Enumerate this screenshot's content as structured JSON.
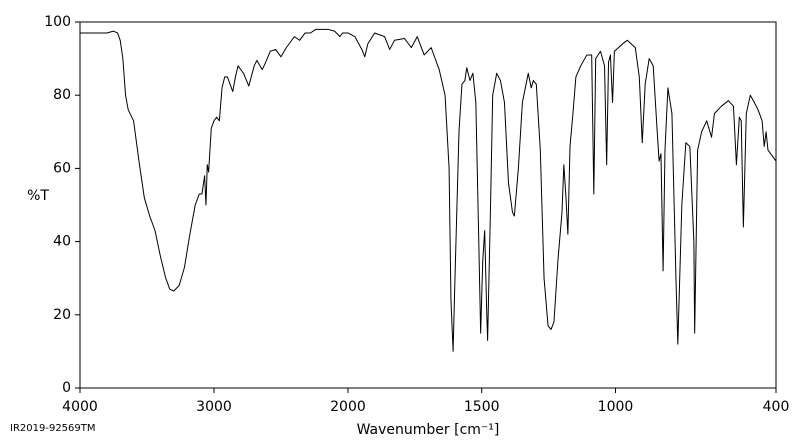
{
  "chart_data": {
    "type": "line",
    "ylabel": "%T",
    "xlabel": "Wavenumber [cm⁻¹]",
    "footnote": "IR2019-92569TM",
    "xlim": [
      4000,
      400
    ],
    "xbreak": 2000,
    "ylim": [
      0,
      100
    ],
    "xticks": [
      4000,
      3000,
      2000,
      1500,
      1000,
      400
    ],
    "yticks": [
      0,
      20,
      40,
      60,
      80,
      100
    ],
    "color": "#000000",
    "x": [
      4000,
      3800,
      3750,
      3720,
      3700,
      3680,
      3660,
      3640,
      3600,
      3560,
      3520,
      3480,
      3440,
      3400,
      3360,
      3330,
      3300,
      3260,
      3220,
      3180,
      3140,
      3110,
      3090,
      3070,
      3060,
      3050,
      3040,
      3020,
      3000,
      2980,
      2960,
      2940,
      2920,
      2900,
      2880,
      2860,
      2840,
      2820,
      2780,
      2740,
      2700,
      2680,
      2640,
      2620,
      2580,
      2540,
      2500,
      2460,
      2400,
      2360,
      2320,
      2280,
      2240,
      2200,
      2150,
      2100,
      2060,
      2040,
      2000,
      1974,
      1948,
      1937,
      1926,
      1900,
      1863,
      1844,
      1826,
      1789,
      1763,
      1741,
      1715,
      1689,
      1659,
      1637,
      1622,
      1615,
      1607,
      1600,
      1585,
      1574,
      1563,
      1556,
      1544,
      1533,
      1522,
      1511,
      1504,
      1496,
      1489,
      1481,
      1478,
      1467,
      1459,
      1444,
      1430,
      1415,
      1400,
      1385,
      1378,
      1363,
      1348,
      1337,
      1326,
      1315,
      1307,
      1296,
      1281,
      1267,
      1252,
      1241,
      1230,
      1215,
      1200,
      1193,
      1185,
      1178,
      1170,
      1159,
      1148,
      1130,
      1107,
      1089,
      1081,
      1074,
      1056,
      1041,
      1033,
      1026,
      1019,
      1011,
      1004,
      989,
      974,
      956,
      926,
      911,
      900,
      889,
      874,
      859,
      844,
      837,
      830,
      822,
      815,
      804,
      789,
      774,
      767,
      752,
      737,
      722,
      707,
      704,
      693,
      678,
      659,
      641,
      630,
      604,
      578,
      559,
      548,
      537,
      530,
      522,
      511,
      496,
      481,
      467,
      452,
      444,
      437,
      430,
      400
    ],
    "values": [
      97,
      97,
      97.5,
      97,
      95,
      90,
      80,
      76,
      73,
      62,
      52,
      47,
      43,
      36,
      30,
      27,
      26.5,
      28,
      33,
      42,
      50,
      53,
      53,
      58,
      50,
      61,
      59,
      71,
      73,
      74,
      73,
      82,
      85,
      85,
      83,
      81,
      85,
      88,
      86,
      82.5,
      88,
      89.5,
      87,
      88.5,
      92,
      92.5,
      90.5,
      93,
      96,
      95,
      97,
      97,
      98,
      98,
      98,
      97.5,
      96,
      97,
      97,
      96,
      92.5,
      90.5,
      94,
      97,
      96,
      92.5,
      95,
      95.5,
      93,
      96,
      91,
      93,
      87,
      80,
      60,
      24,
      10,
      30,
      70,
      83,
      84,
      87.5,
      84,
      86,
      78,
      40,
      15,
      35,
      43,
      20,
      13,
      50,
      80,
      86,
      84,
      78,
      56,
      48,
      47,
      60,
      78,
      82,
      86,
      82,
      84,
      83,
      65,
      30,
      17,
      16,
      18,
      35,
      48,
      61,
      52,
      42,
      66,
      75,
      85,
      88,
      91,
      91,
      53,
      90,
      92,
      88,
      61,
      89,
      91,
      78,
      92,
      93,
      94,
      95,
      93,
      85,
      67,
      83,
      90,
      88,
      70,
      62,
      64,
      32,
      65,
      82,
      75,
      30,
      12,
      50,
      67,
      66,
      40,
      15,
      65,
      70,
      73,
      68.5,
      75,
      77,
      78.5,
      77,
      61,
      74,
      73,
      44,
      75,
      80,
      78,
      76,
      73,
      66,
      70,
      65,
      62
    ]
  }
}
